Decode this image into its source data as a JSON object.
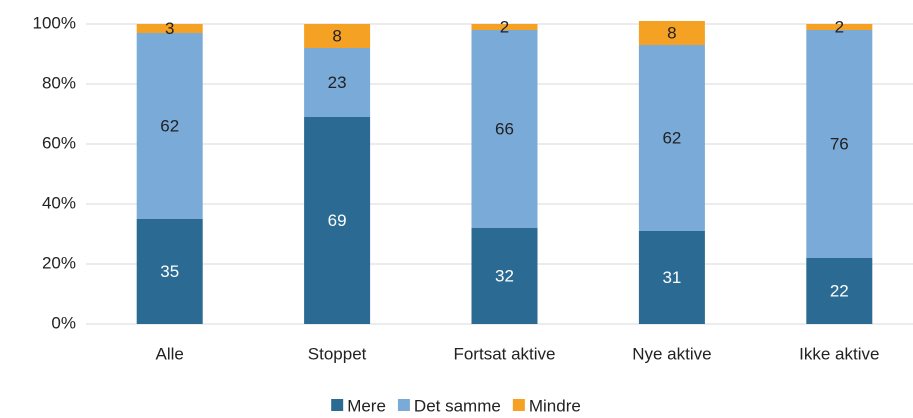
{
  "chart_data": {
    "type": "stacked_bar",
    "categories": [
      "Alle",
      "Stoppet",
      "Fortsat aktive",
      "Nye aktive",
      "Ikke aktive"
    ],
    "series": [
      {
        "name": "Mere",
        "color": "#2a6a93",
        "values": [
          35,
          69,
          32,
          31,
          22
        ]
      },
      {
        "name": "Det samme",
        "color": "#7aaad8",
        "values": [
          62,
          23,
          66,
          62,
          76
        ]
      },
      {
        "name": "Mindre",
        "color": "#f4a124",
        "values": [
          3,
          8,
          2,
          8,
          2
        ]
      }
    ],
    "ylim": [
      0,
      100
    ],
    "yticks": [
      {
        "value": 0,
        "label": "0%"
      },
      {
        "value": 20,
        "label": "20%"
      },
      {
        "value": 40,
        "label": "40%"
      },
      {
        "value": 60,
        "label": "60%"
      },
      {
        "value": 80,
        "label": "80%"
      },
      {
        "value": 100,
        "label": "100%"
      }
    ],
    "grid": true,
    "legend": "bottom"
  }
}
